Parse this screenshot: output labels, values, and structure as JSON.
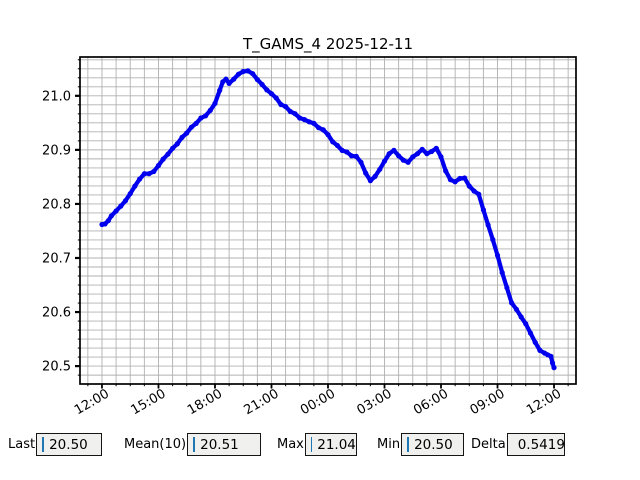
{
  "title": "T_GAMS_4 2025-12-11",
  "colors": {
    "line": "#0000ee",
    "grid": "#b0b0b0",
    "spine": "#000000",
    "cursor": "#1f77b4",
    "box_bg": "#f0f0ee"
  },
  "stats": [
    {
      "label": "Last",
      "value": "20.50"
    },
    {
      "label": "Mean(10)",
      "value": "20.51"
    },
    {
      "label": "Max",
      "value": "21.04"
    },
    {
      "label": "Min",
      "value": "20.50"
    },
    {
      "label": "Delta",
      "value": "0.5419"
    }
  ],
  "chart_data": {
    "type": "line",
    "title": "T_GAMS_4 2025-12-11",
    "xlabel": "",
    "ylabel": "",
    "legend": "none",
    "grid": true,
    "x_axis": {
      "tick_minutes": [
        0,
        180,
        360,
        540,
        720,
        900,
        1080,
        1260,
        1440
      ],
      "tick_labels": [
        "12:00",
        "15:00",
        "18:00",
        "21:00",
        "00:00",
        "03:00",
        "06:00",
        "09:00",
        "12:00"
      ],
      "minor_step_minutes": 45,
      "lim_minutes": [
        -70,
        1510
      ]
    },
    "y_axis": {
      "ticks": [
        20.5,
        20.6,
        20.7,
        20.8,
        20.9,
        21.0
      ],
      "tick_labels": [
        "20.5",
        "20.6",
        "20.7",
        "20.8",
        "20.9",
        "21.0"
      ],
      "minor_step": 0.0166667,
      "lim": [
        20.4669,
        21.0718
      ]
    },
    "points": [
      [
        0,
        20.762
      ],
      [
        10,
        20.763
      ],
      [
        20,
        20.769
      ],
      [
        30,
        20.778
      ],
      [
        45,
        20.787
      ],
      [
        60,
        20.796
      ],
      [
        75,
        20.806
      ],
      [
        90,
        20.819
      ],
      [
        105,
        20.833
      ],
      [
        120,
        20.846
      ],
      [
        135,
        20.856
      ],
      [
        150,
        20.856
      ],
      [
        165,
        20.86
      ],
      [
        180,
        20.871
      ],
      [
        195,
        20.883
      ],
      [
        210,
        20.892
      ],
      [
        225,
        20.903
      ],
      [
        240,
        20.911
      ],
      [
        255,
        20.923
      ],
      [
        270,
        20.931
      ],
      [
        285,
        20.942
      ],
      [
        300,
        20.949
      ],
      [
        315,
        20.959
      ],
      [
        330,
        20.963
      ],
      [
        345,
        20.973
      ],
      [
        360,
        20.986
      ],
      [
        375,
        21.01
      ],
      [
        385,
        21.026
      ],
      [
        395,
        21.031
      ],
      [
        405,
        21.023
      ],
      [
        420,
        21.031
      ],
      [
        435,
        21.04
      ],
      [
        450,
        21.045
      ],
      [
        465,
        21.046
      ],
      [
        480,
        21.041
      ],
      [
        495,
        21.03
      ],
      [
        510,
        21.021
      ],
      [
        525,
        21.011
      ],
      [
        540,
        21.004
      ],
      [
        555,
        20.996
      ],
      [
        570,
        20.984
      ],
      [
        585,
        20.98
      ],
      [
        600,
        20.971
      ],
      [
        615,
        20.967
      ],
      [
        630,
        20.959
      ],
      [
        645,
        20.956
      ],
      [
        660,
        20.952
      ],
      [
        675,
        20.949
      ],
      [
        690,
        20.941
      ],
      [
        705,
        20.937
      ],
      [
        720,
        20.928
      ],
      [
        735,
        20.915
      ],
      [
        750,
        20.908
      ],
      [
        765,
        20.899
      ],
      [
        780,
        20.896
      ],
      [
        795,
        20.889
      ],
      [
        810,
        20.888
      ],
      [
        825,
        20.877
      ],
      [
        840,
        20.857
      ],
      [
        855,
        20.843
      ],
      [
        870,
        20.851
      ],
      [
        885,
        20.864
      ],
      [
        900,
        20.879
      ],
      [
        915,
        20.893
      ],
      [
        930,
        20.899
      ],
      [
        945,
        20.889
      ],
      [
        960,
        20.881
      ],
      [
        975,
        20.877
      ],
      [
        990,
        20.887
      ],
      [
        1005,
        20.893
      ],
      [
        1020,
        20.901
      ],
      [
        1035,
        20.893
      ],
      [
        1050,
        20.897
      ],
      [
        1065,
        20.903
      ],
      [
        1080,
        20.887
      ],
      [
        1095,
        20.861
      ],
      [
        1110,
        20.845
      ],
      [
        1125,
        20.841
      ],
      [
        1140,
        20.847
      ],
      [
        1155,
        20.848
      ],
      [
        1170,
        20.833
      ],
      [
        1185,
        20.824
      ],
      [
        1200,
        20.818
      ],
      [
        1215,
        20.789
      ],
      [
        1230,
        20.761
      ],
      [
        1245,
        20.734
      ],
      [
        1260,
        20.705
      ],
      [
        1275,
        20.673
      ],
      [
        1290,
        20.645
      ],
      [
        1305,
        20.617
      ],
      [
        1320,
        20.605
      ],
      [
        1335,
        20.591
      ],
      [
        1350,
        20.578
      ],
      [
        1365,
        20.561
      ],
      [
        1380,
        20.544
      ],
      [
        1395,
        20.529
      ],
      [
        1410,
        20.524
      ],
      [
        1420,
        20.521
      ],
      [
        1430,
        20.518
      ],
      [
        1435,
        20.506
      ],
      [
        1440,
        20.497
      ]
    ]
  }
}
